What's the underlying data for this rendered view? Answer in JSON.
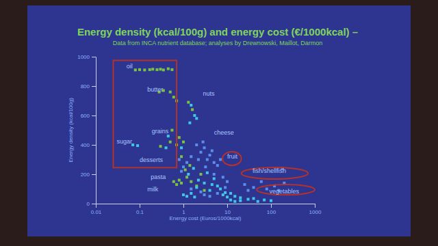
{
  "chart_data": {
    "type": "scatter",
    "title": "Energy density (kcal/100g) and energy cost (€/1000kcal) –",
    "subtitle": "Data from INCA nutrient database; analyses by Drewnowski, Maillot, Darmon",
    "x_label": "Energy cost (Euros/1000kcal)",
    "y_label": "Energy density (kcal/100g)",
    "log": "x",
    "xlim": [
      0.01,
      1000
    ],
    "ylim": [
      0,
      1000
    ],
    "xticks": [
      0.01,
      0.1,
      1,
      10,
      100,
      1000
    ],
    "yticks": [
      0,
      200,
      400,
      600,
      800,
      1000
    ],
    "marker": "square",
    "series": [
      {
        "color": "#7cc242",
        "x": [
          0.08,
          0.1,
          0.13,
          0.17,
          0.2,
          0.25,
          0.3,
          0.35,
          0.45,
          0.55,
          0.28,
          0.35,
          0.5,
          0.6,
          0.7,
          1.3,
          1.6,
          0.3,
          0.5,
          0.7,
          0.8,
          0.55,
          1,
          0.6,
          0.7,
          0.8,
          0.9,
          1.2,
          1.5,
          2,
          2.5,
          3,
          1.1,
          0.9,
          1.4
        ],
        "values": [
          910,
          912,
          910,
          912,
          915,
          912,
          915,
          910,
          918,
          912,
          760,
          770,
          760,
          725,
          700,
          690,
          640,
          390,
          420,
          400,
          450,
          500,
          420,
          150,
          130,
          160,
          140,
          180,
          150,
          120,
          200,
          90,
          230,
          320,
          260
        ]
      },
      {
        "color": "#3fc5e8",
        "x": [
          1.5,
          1.8,
          2,
          1.4,
          0.07,
          0.09,
          0.4,
          0.9,
          0.45,
          1,
          1.2,
          1.5,
          1.8,
          8,
          10,
          12,
          15,
          20,
          9,
          12,
          20,
          30,
          50,
          70,
          100,
          40,
          15,
          2,
          3,
          4,
          5,
          6,
          1.3,
          1.7,
          2.2,
          3.5,
          4.5,
          7
        ],
        "values": [
          670,
          600,
          580,
          550,
          400,
          395,
          380,
          380,
          460,
          60,
          50,
          70,
          45,
          60,
          45,
          70,
          50,
          40,
          75,
          25,
          20,
          30,
          15,
          25,
          20,
          35,
          15,
          110,
          140,
          90,
          170,
          120,
          200,
          240,
          160,
          210,
          130,
          100
        ]
      },
      {
        "color": "#5b8def",
        "x": [
          2,
          2.5,
          3,
          4,
          3.5,
          5,
          2.8,
          6,
          4.5,
          3.2,
          2.2,
          7,
          25,
          40,
          60,
          80,
          120,
          150,
          200,
          30,
          180,
          8,
          10,
          6,
          4,
          3,
          5,
          9,
          2.5,
          1.5,
          0.8,
          1,
          1.2,
          1.5,
          0.9
        ],
        "values": [
          400,
          350,
          380,
          330,
          300,
          280,
          420,
          260,
          360,
          250,
          300,
          300,
          130,
          110,
          150,
          100,
          120,
          90,
          140,
          90,
          240,
          180,
          150,
          70,
          50,
          60,
          200,
          110,
          80,
          100,
          300,
          250,
          280,
          320,
          220
        ]
      }
    ],
    "annotations": [
      {
        "text": "oil",
        "x": 0.05,
        "y": 920
      },
      {
        "text": "butter",
        "x": 0.15,
        "y": 765
      },
      {
        "text": "nuts",
        "x": 2.8,
        "y": 735
      },
      {
        "text": "sugar",
        "x": 0.03,
        "y": 410
      },
      {
        "text": "grains",
        "x": 0.19,
        "y": 480
      },
      {
        "text": "cheese",
        "x": 5,
        "y": 470
      },
      {
        "text": "desserts",
        "x": 0.1,
        "y": 285
      },
      {
        "text": "fruit",
        "x": 10,
        "y": 307
      },
      {
        "text": "fish/shellfish",
        "x": 38,
        "y": 210
      },
      {
        "text": "pasta",
        "x": 0.18,
        "y": 167
      },
      {
        "text": "milk",
        "x": 0.15,
        "y": 84
      },
      {
        "text": "vegetables",
        "x": 91,
        "y": 70
      }
    ],
    "highlight_box": {
      "x": [
        0.025,
        0.7
      ],
      "y": [
        245,
        975
      ]
    },
    "highlight_ellipses": [
      {
        "x": [
          7.8,
          21
        ],
        "y": [
          260,
          353
        ]
      },
      {
        "x": [
          21,
          700
        ],
        "y": [
          167,
          247
        ]
      },
      {
        "x": [
          47,
          1000
        ],
        "y": [
          60,
          130
        ]
      }
    ]
  }
}
